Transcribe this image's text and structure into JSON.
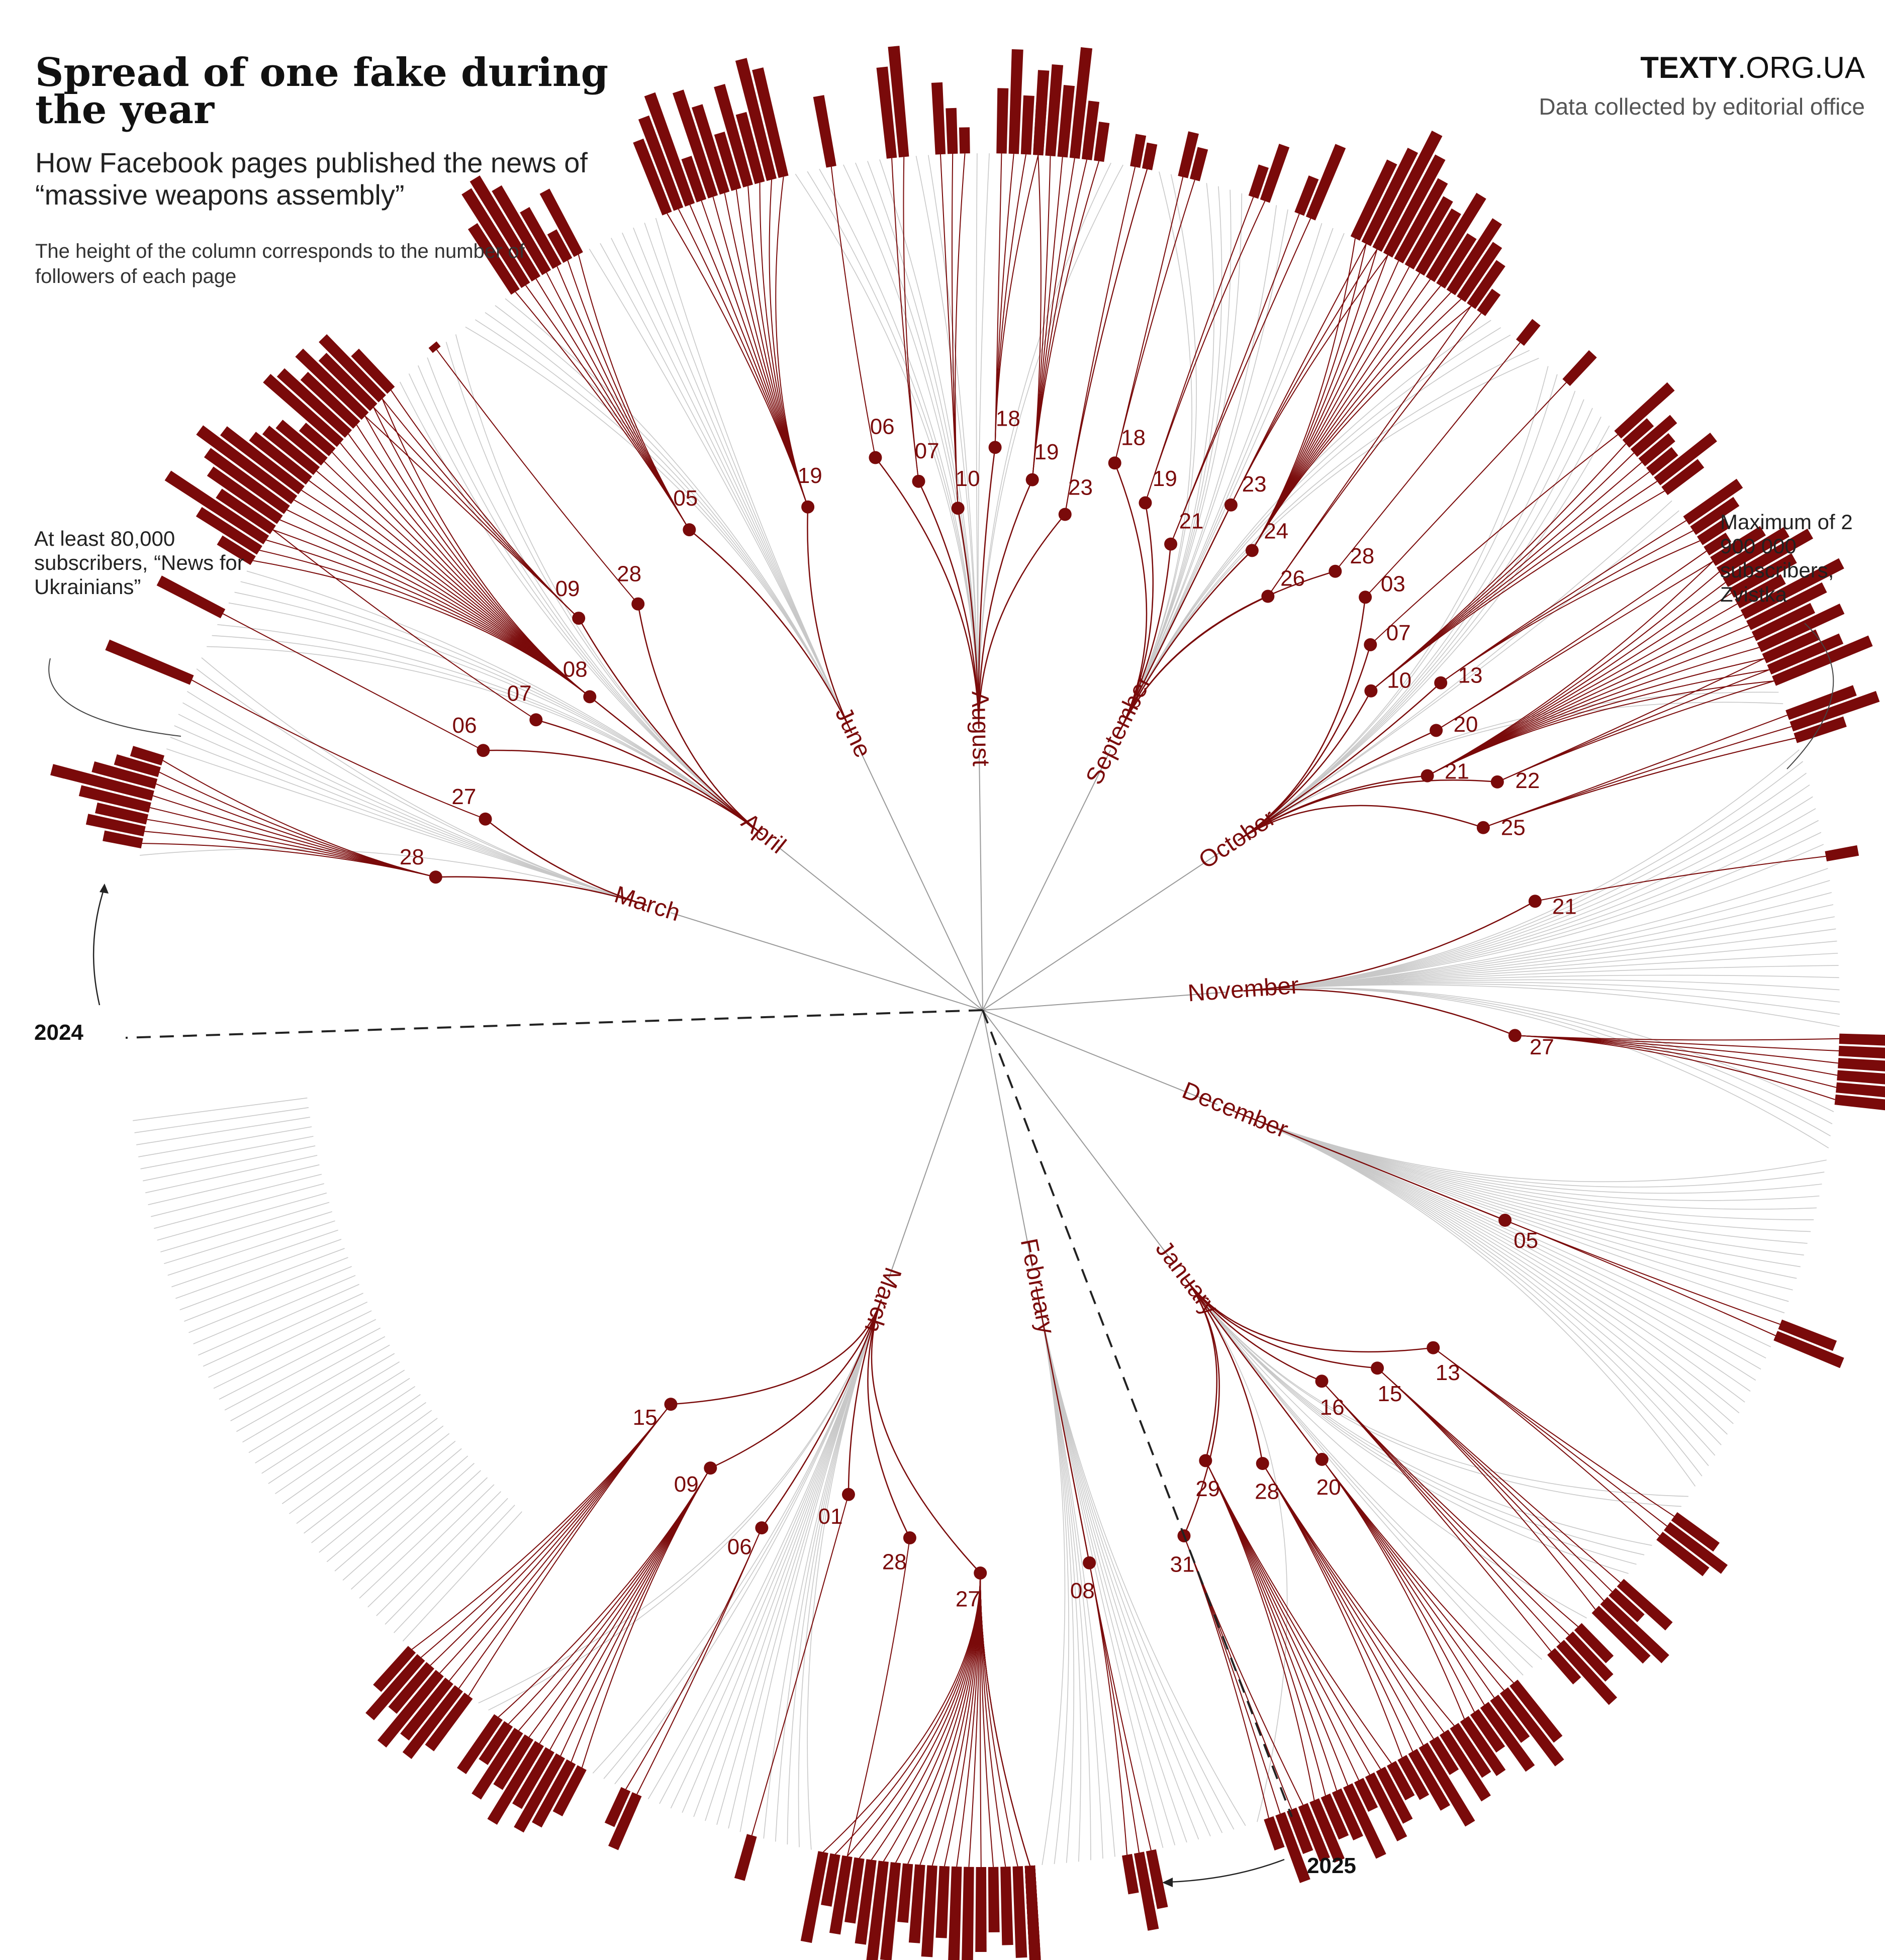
{
  "header": {
    "title": "Spread of one fake during the year",
    "subtitle": "How Facebook pages published the news of “massive weapons assembly”",
    "note": "The height of the column corresponds to the number of followers of each page",
    "brand_bold": "TEXTY",
    "brand_rest": ".ORG.UA",
    "credit": "Data collected by editorial office"
  },
  "annotations": {
    "min": "At least 80,000 subscribers, “News for Ukrainians”",
    "max": "Maximum of 2 900 000 subscribers, Zvistka",
    "year_start": "2024",
    "year_end": "2025"
  },
  "colors": {
    "highlight": "#7a0a0a",
    "inactive": "#c8c8c8",
    "axis": "#999999",
    "year_line": "#222222",
    "text": "#333333"
  },
  "chart_data": {
    "type": "radial_tree",
    "months": [
      {
        "label": "March",
        "year": "2024",
        "days": [
          {
            "day": "28",
            "pages": 8,
            "bars": [
              0.3,
              0.45,
              0.4,
              0.55,
              0.8,
              0.5,
              0.35,
              0.25
            ]
          },
          {
            "day": "27",
            "pages": 1,
            "bars": [
              0.7
            ]
          }
        ]
      },
      {
        "label": "April",
        "year": "2024",
        "days": [
          {
            "day": "06",
            "pages": 1,
            "bars": [
              0.55
            ]
          },
          {
            "day": "07",
            "pages": 1,
            "bars": [
              0.3
            ]
          },
          {
            "day": "08",
            "pages": 18,
            "bars": [
              0.3,
              0.55,
              0.9,
              0.5,
              0.65,
              0.75,
              0.9,
              0.75,
              0.55,
              0.5,
              0.45,
              0.3,
              0.75,
              0.7,
              0.55,
              0.7,
              0.55,
              0.4
            ]
          },
          {
            "day": "09",
            "pages": 4,
            "bars": [
              0.45,
              0.55,
              0.65,
              0.4
            ]
          },
          {
            "day": "28",
            "pages": 1,
            "bars": [
              0.05
            ]
          }
        ]
      },
      {
        "label": "June",
        "year": "2024",
        "days": [
          {
            "day": "05",
            "pages": 7,
            "bars": [
              0.6,
              0.85,
              0.9,
              0.75,
              0.5,
              0.25,
              0.55
            ]
          },
          {
            "day": "19",
            "pages": 11,
            "bars": [
              0.6,
              0.75,
              0.9,
              0.35,
              0.85,
              0.7,
              0.45,
              0.8,
              0.55,
              0.95,
              0.85
            ]
          }
        ]
      },
      {
        "label": "August",
        "year": "2024",
        "days": [
          {
            "day": "06",
            "pages": 1,
            "bars": [
              0.55
            ]
          },
          {
            "day": "07",
            "pages": 2,
            "bars": [
              0.7,
              0.85
            ]
          },
          {
            "day": "10",
            "pages": 3,
            "bars": [
              0.55,
              0.35,
              0.2
            ]
          },
          {
            "day": "18",
            "pages": 4,
            "bars": [
              0.5,
              0.8,
              0.45,
              0.65
            ]
          },
          {
            "day": "19",
            "pages": 6,
            "bars": [
              0.4,
              0.7,
              0.55,
              0.85,
              0.45,
              0.3
            ]
          },
          {
            "day": "23",
            "pages": 3,
            "bars": [
              0.25,
              0.2,
              0.15
            ]
          }
        ]
      },
      {
        "label": "September",
        "year": "2024",
        "days": [
          {
            "day": "18",
            "pages": 2,
            "bars": [
              0.35,
              0.25
            ]
          },
          {
            "day": "19",
            "pages": 2,
            "bars": [
              0.25,
              0.45
            ]
          },
          {
            "day": "21",
            "pages": 2,
            "bars": [
              0.3,
              0.6
            ]
          },
          {
            "day": "23",
            "pages": 3,
            "bars": [
              0.45,
              0.7,
              0.55
            ]
          },
          {
            "day": "24",
            "pages": 12,
            "bars": [
              0.65,
              0.8,
              1.0,
              0.85,
              0.7,
              0.6,
              0.55,
              0.75,
              0.45,
              0.65,
              0.5,
              0.4
            ]
          },
          {
            "day": "26",
            "pages": 2,
            "bars": [
              0.15,
              0.2
            ]
          },
          {
            "day": "28",
            "pages": 1,
            "bars": [
              0.2
            ]
          }
        ]
      },
      {
        "label": "October",
        "year": "2024",
        "days": [
          {
            "day": "03",
            "pages": 1,
            "bars": [
              0.3
            ]
          },
          {
            "day": "07",
            "pages": 1,
            "bars": [
              0.55
            ]
          },
          {
            "day": "10",
            "pages": 6,
            "bars": [
              0.25,
              0.4,
              0.3,
              0.25,
              0.55,
              0.35
            ]
          },
          {
            "day": "13",
            "pages": 3,
            "bars": [
              0.5,
              0.4,
              0.25
            ]
          },
          {
            "day": "20",
            "pages": 2,
            "bars": [
              0.2,
              0.3
            ]
          },
          {
            "day": "21",
            "pages": 12,
            "bars": [
              0.45,
              0.6,
              0.75,
              0.55,
              0.4,
              0.85,
              0.65,
              0.5,
              0.7,
              0.35,
              0.6,
              0.8
            ]
          },
          {
            "day": "22",
            "pages": 3,
            "bars": [
              0.45,
              0.3,
              0.25
            ]
          },
          {
            "day": "25",
            "pages": 4,
            "bars": [
              0.55,
              0.7,
              0.4,
              0.25
            ]
          }
        ]
      },
      {
        "label": "November",
        "year": "2024",
        "days": [
          {
            "day": "21",
            "pages": 1,
            "bars": [
              0.25
            ]
          },
          {
            "day": "27",
            "pages": 6,
            "bars": [
              0.4,
              0.55,
              0.65,
              0.7,
              0.55,
              0.45
            ]
          }
        ]
      },
      {
        "label": "December",
        "year": "2024",
        "days": [
          {
            "day": "05",
            "pages": 2,
            "bars": [
              0.45,
              0.55
            ]
          }
        ]
      },
      {
        "label": "January",
        "year": "2025",
        "days": [
          {
            "day": "13",
            "pages": 3,
            "bars": [
              0.4,
              0.55,
              0.45
            ]
          },
          {
            "day": "15",
            "pages": 4,
            "bars": [
              0.5,
              0.3,
              0.65,
              0.55
            ]
          },
          {
            "day": "16",
            "pages": 4,
            "bars": [
              0.35,
              0.45,
              0.6,
              0.3
            ]
          },
          {
            "day": "20",
            "pages": 6,
            "bars": [
              0.55,
              0.7,
              0.4,
              0.6,
              0.35,
              0.5
            ]
          },
          {
            "day": "28",
            "pages": 6,
            "bars": [
              0.45,
              0.6,
              0.3,
              0.7,
              0.5,
              0.35
            ]
          },
          {
            "day": "29",
            "pages": 8,
            "bars": [
              0.3,
              0.45,
              0.55,
              0.25,
              0.6,
              0.4,
              0.35,
              0.5
            ]
          },
          {
            "day": "31",
            "pages": 4,
            "bars": [
              0.45,
              0.35,
              0.55,
              0.25
            ]
          }
        ]
      },
      {
        "label": "February",
        "year": "2025",
        "days": [
          {
            "day": "08",
            "pages": 3,
            "bars": [
              0.45,
              0.6,
              0.3
            ]
          }
        ]
      },
      {
        "label": "March",
        "year": "2025",
        "days": [
          {
            "day": "27",
            "pages": 26,
            "bars": [
              0.15,
              0.35,
              0.5,
              0.65,
              0.6,
              0.75,
              0.55,
              0.45,
              0.85,
              0.7,
              0.6,
              0.5,
              0.65,
              0.9,
              0.8,
              0.55,
              0.7,
              0.6,
              0.45,
              0.75,
              0.85,
              0.65,
              0.5,
              0.6,
              0.4,
              0.7
            ]
          },
          {
            "day": "28",
            "pages": 1,
            "bars": [
              0.25
            ]
          },
          {
            "day": "01",
            "pages": 1,
            "bars": [
              0.35
            ]
          },
          {
            "day": "06",
            "pages": 2,
            "bars": [
              0.45,
              0.3
            ]
          },
          {
            "day": "09",
            "pages": 9,
            "bars": [
              0.4,
              0.55,
              0.65,
              0.5,
              0.7,
              0.45,
              0.6,
              0.35,
              0.5
            ]
          },
          {
            "day": "15",
            "pages": 7,
            "bars": [
              0.5,
              0.65,
              0.55,
              0.7,
              0.45,
              0.6,
              0.4
            ]
          }
        ]
      }
    ]
  }
}
